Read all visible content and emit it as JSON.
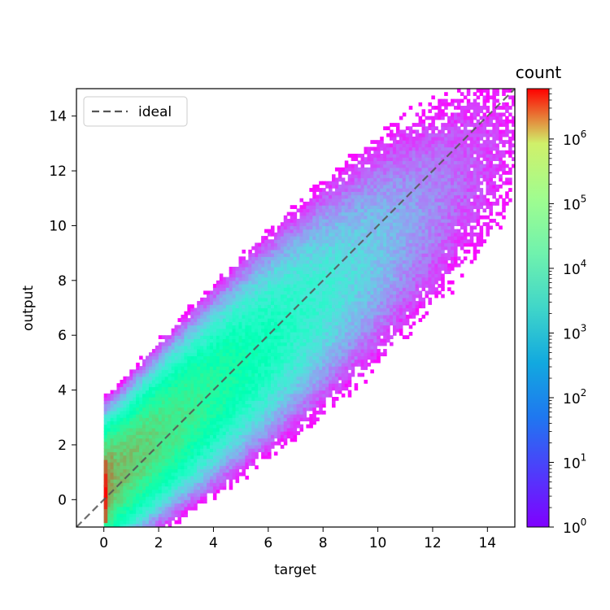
{
  "chart_data": {
    "type": "heatmap",
    "title": "",
    "xlabel": "target",
    "ylabel": "output",
    "xlim": [
      -1,
      15
    ],
    "ylim": [
      -1,
      15
    ],
    "xticks": [
      0,
      2,
      4,
      6,
      8,
      10,
      12,
      14
    ],
    "yticks": [
      0,
      2,
      4,
      6,
      8,
      10,
      12,
      14
    ],
    "colormap": "rainbow",
    "grid": false,
    "legend": {
      "placement": "upper-left",
      "entries": [
        {
          "label": "ideal",
          "style": "dashed",
          "color": "#555555"
        }
      ]
    },
    "reference_line": {
      "label": "ideal",
      "points": [
        [
          -1,
          -1
        ],
        [
          15,
          15
        ]
      ]
    },
    "colorbar": {
      "label": "count",
      "scale": "log",
      "range": [
        1,
        6000000
      ],
      "ticks": [
        {
          "base": "10",
          "exp": "0",
          "value": 1
        },
        {
          "base": "10",
          "exp": "1",
          "value": 10
        },
        {
          "base": "10",
          "exp": "2",
          "value": 100
        },
        {
          "base": "10",
          "exp": "3",
          "value": 1000
        },
        {
          "base": "10",
          "exp": "4",
          "value": 10000
        },
        {
          "base": "10",
          "exp": "5",
          "value": 100000
        },
        {
          "base": "10",
          "exp": "6",
          "value": 1000000
        }
      ]
    },
    "density_features": {
      "target_range": [
        0,
        15
      ],
      "output_range": [
        -1,
        15
      ],
      "peak_count": 6000000,
      "peak_location": {
        "target": 0.1,
        "output": 0.3
      },
      "ridge_peak_count": 200000,
      "ridge_peak_location": {
        "target": 2.5,
        "output": 3.0
      }
    }
  }
}
